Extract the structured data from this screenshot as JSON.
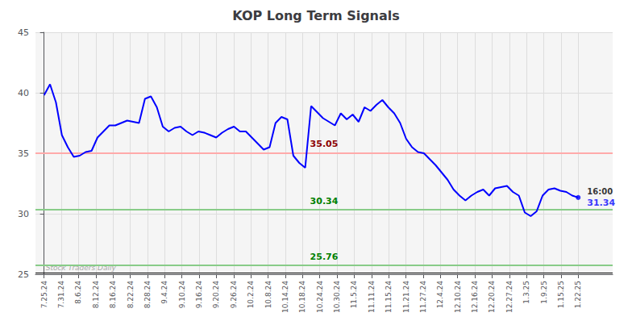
{
  "chart_data": {
    "type": "line",
    "title": "KOP Long Term Signals",
    "color": "blue",
    "x": [
      0,
      0.3444444444,
      0.6888888889,
      1.0333333333,
      1.3777777778,
      1.7222222222,
      2.0666666667,
      2.4111111111,
      2.7555555556,
      3.1,
      3.4444444444,
      3.7888888889,
      4.1333333333,
      4.4777777778,
      4.8222222222,
      5.1666666667,
      5.5111111111,
      5.8555555556,
      6.2,
      6.5444444444,
      6.8888888889,
      7.2333333333,
      7.5777777778,
      7.9222222222,
      8.2666666667,
      8.6111111111,
      8.9555555556,
      9.3,
      9.6444444444,
      9.9888888889,
      10.3333333333,
      10.6777777778,
      11.0222222222,
      11.3666666667,
      11.7111111111,
      12.0555555556,
      12.4,
      12.7444444444,
      13.0888888889,
      13.4333333333,
      13.7777777778,
      14.1222222222,
      14.4666666667,
      14.8111111111,
      15.1555555556,
      15.5,
      15.8444444444,
      16.1888888889,
      16.5333333333,
      16.8777777778,
      17.2222222222,
      17.5666666667,
      17.9111111111,
      18.2555555556,
      18.6,
      18.9444444444,
      19.2888888889,
      19.6333333333,
      19.9777777778,
      20.3222222222,
      20.6666666667,
      21.0111111111,
      21.3555555556,
      21.7,
      22.0444444444,
      22.3888888889,
      22.7333333333,
      23.0777777778,
      23.4222222222,
      23.7666666667,
      24.1111111111,
      24.4555555556,
      24.8,
      25.1444444444,
      25.4888888889,
      25.8333333333,
      26.1777777778,
      26.5222222222,
      26.8666666667,
      27.2111111111,
      27.5555555556,
      27.9,
      28.2444444444,
      28.5888888889,
      28.9333333333,
      29.2777777778,
      29.6222222222,
      29.9666666667,
      30.3111111111,
      30.6555555556,
      31
    ],
    "values": [
      39.8,
      40.7,
      39.2,
      36.5,
      35.5,
      34.7,
      34.8,
      35.1,
      35.2,
      36.3,
      36.8,
      37.3,
      37.3,
      37.5,
      37.7,
      37.6,
      37.5,
      39.5,
      39.7,
      38.8,
      37.2,
      36.8,
      37.1,
      37.2,
      36.8,
      36.5,
      36.8,
      36.7,
      36.5,
      36.3,
      36.7,
      37.0,
      37.2,
      36.8,
      36.8,
      36.3,
      35.8,
      35.3,
      35.5,
      37.5,
      38.0,
      37.8,
      34.8,
      34.2,
      33.8,
      38.9,
      38.4,
      37.9,
      37.6,
      37.3,
      38.3,
      37.8,
      38.2,
      37.6,
      38.8,
      38.5,
      39.0,
      39.4,
      38.8,
      38.3,
      37.5,
      36.2,
      35.5,
      35.1,
      35.0,
      34.5,
      34.0,
      33.4,
      32.8,
      32.0,
      31.5,
      31.1,
      31.5,
      31.8,
      32.0,
      31.5,
      32.1,
      32.2,
      32.3,
      31.8,
      31.5,
      30.1,
      29.8,
      30.2,
      31.5,
      32.0,
      32.1,
      31.9,
      31.8,
      31.5,
      31.34
    ],
    "xlim": [
      -0.5,
      33
    ],
    "xticks": [
      {
        "value": 0,
        "label": "7.25.24"
      },
      {
        "value": 1,
        "label": "7.31.24"
      },
      {
        "value": 2,
        "label": "8.6.24"
      },
      {
        "value": 3,
        "label": "8.12.24"
      },
      {
        "value": 4,
        "label": "8.16.24"
      },
      {
        "value": 5,
        "label": "8.22.24"
      },
      {
        "value": 6,
        "label": "8.28.24"
      },
      {
        "value": 7,
        "label": "9.4.24"
      },
      {
        "value": 8,
        "label": "9.10.24"
      },
      {
        "value": 9,
        "label": "9.16.24"
      },
      {
        "value": 10,
        "label": "9.20.24"
      },
      {
        "value": 11,
        "label": "9.26.24"
      },
      {
        "value": 12,
        "label": "10.2.24"
      },
      {
        "value": 13,
        "label": "10.8.24"
      },
      {
        "value": 14,
        "label": "10.14.24"
      },
      {
        "value": 15,
        "label": "10.18.24"
      },
      {
        "value": 16,
        "label": "10.24.24"
      },
      {
        "value": 17,
        "label": "10.30.24"
      },
      {
        "value": 18,
        "label": "11.5.24"
      },
      {
        "value": 19,
        "label": "11.11.24"
      },
      {
        "value": 20,
        "label": "11.15.24"
      },
      {
        "value": 21,
        "label": "11.21.24"
      },
      {
        "value": 22,
        "label": "11.27.24"
      },
      {
        "value": 23,
        "label": "12.4.24"
      },
      {
        "value": 24,
        "label": "12.10.24"
      },
      {
        "value": 25,
        "label": "12.16.24"
      },
      {
        "value": 26,
        "label": "12.20.24"
      },
      {
        "value": 27,
        "label": "12.27.24"
      },
      {
        "value": 28,
        "label": "1.3.25"
      },
      {
        "value": 29,
        "label": "1.9.25"
      },
      {
        "value": 30,
        "label": "1.15.25"
      },
      {
        "value": 31,
        "label": "1.22.25"
      }
    ],
    "ylim": [
      25,
      45
    ],
    "yticks": [
      25,
      30,
      35,
      40,
      45
    ],
    "grid": true,
    "lines": [
      {
        "y": 35.05,
        "label": "35.05",
        "color": "#ffaaaa",
        "label_color": "#8b0000"
      },
      {
        "y": 30.34,
        "label": "30.34",
        "color": "#88cc88",
        "label_color": "green"
      },
      {
        "y": 25.76,
        "label": "25.76",
        "color": "#88cc88",
        "label_color": "green"
      },
      {
        "y": 25.1,
        "color": "black"
      }
    ],
    "annotations": [
      {
        "text": "Stock Traders Daily",
        "color": "#aaaaaa"
      },
      {
        "text": "16:00",
        "color": "black"
      },
      {
        "text": "31.34",
        "color": "blue"
      }
    ]
  }
}
